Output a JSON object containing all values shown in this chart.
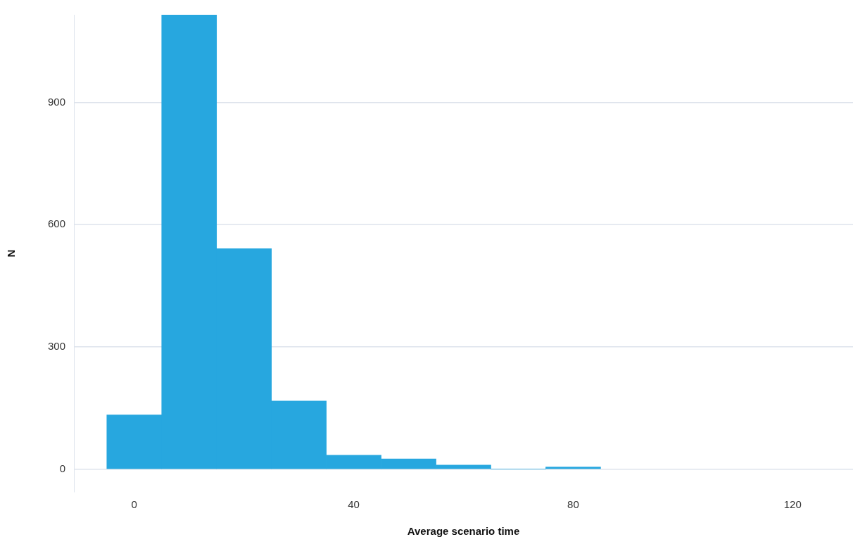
{
  "chart_data": {
    "type": "histogram",
    "xlabel": "Average scenario time",
    "ylabel": "N",
    "bins": [
      -5,
      5,
      15,
      25,
      35,
      45,
      55,
      65,
      75,
      85
    ],
    "values": [
      133,
      1115,
      541,
      167,
      34,
      25,
      10,
      0,
      5
    ],
    "color": "#27a7df",
    "xlim": [
      -11,
      131
    ],
    "xticks": [
      0,
      40,
      80,
      120
    ],
    "ylim": [
      -56,
      1115
    ],
    "yticks": [
      0,
      300,
      600,
      900
    ],
    "grid": "y",
    "legend": false
  }
}
